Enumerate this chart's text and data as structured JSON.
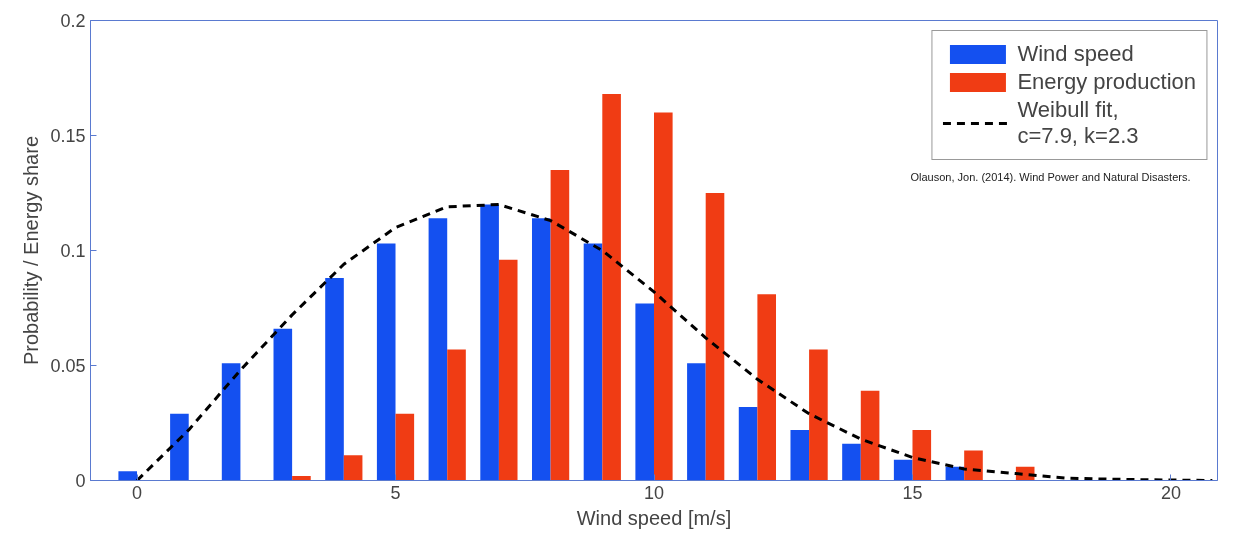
{
  "chart_data": {
    "type": "bar",
    "xlabel": "Wind speed [m/s]",
    "ylabel": "Probability / Energy share",
    "x": [
      0,
      1,
      2,
      3,
      4,
      5,
      6,
      7,
      8,
      9,
      10,
      11,
      12,
      13,
      14,
      15,
      16,
      17
    ],
    "series": [
      {
        "name": "Wind speed",
        "color": "#1450f0",
        "values": [
          0.004,
          0.029,
          0.051,
          0.066,
          0.088,
          0.103,
          0.114,
          0.12,
          0.114,
          0.103,
          0.077,
          0.051,
          0.032,
          0.022,
          0.016,
          0.009,
          0.006,
          null
        ]
      },
      {
        "name": "Energy production",
        "color": "#f03c14",
        "values": [
          null,
          null,
          null,
          0.002,
          0.011,
          0.029,
          0.057,
          0.096,
          0.135,
          0.168,
          0.16,
          0.125,
          0.081,
          0.057,
          0.039,
          0.022,
          0.013,
          0.006
        ]
      },
      {
        "name": "Weibull fit,\nc=7.9, k=2.3",
        "type": "line",
        "color": "#000000",
        "line_style": "dashed",
        "x": [
          0,
          1,
          2,
          3,
          4,
          5,
          6,
          7,
          8,
          9,
          10,
          11,
          12,
          13,
          14,
          15,
          16,
          17,
          18,
          19,
          20,
          20.8
        ],
        "values": [
          0,
          0.022,
          0.048,
          0.072,
          0.094,
          0.11,
          0.119,
          0.12,
          0.113,
          0.1,
          0.082,
          0.062,
          0.044,
          0.029,
          0.018,
          0.01,
          0.005,
          0.003,
          0.001,
          0.0005,
          0.0002,
          0
        ]
      }
    ],
    "xlim": [
      -0.9,
      20.9
    ],
    "xticks": [
      0,
      5,
      10,
      15,
      20
    ],
    "ylim": [
      0,
      0.2
    ],
    "yticks": [
      0,
      0.05,
      0.1,
      0.15,
      0.2
    ],
    "grid": false,
    "legend": "top right",
    "annotations": [
      "Olauson, Jon. (2014). Wind Power and Natural Disasters."
    ]
  }
}
